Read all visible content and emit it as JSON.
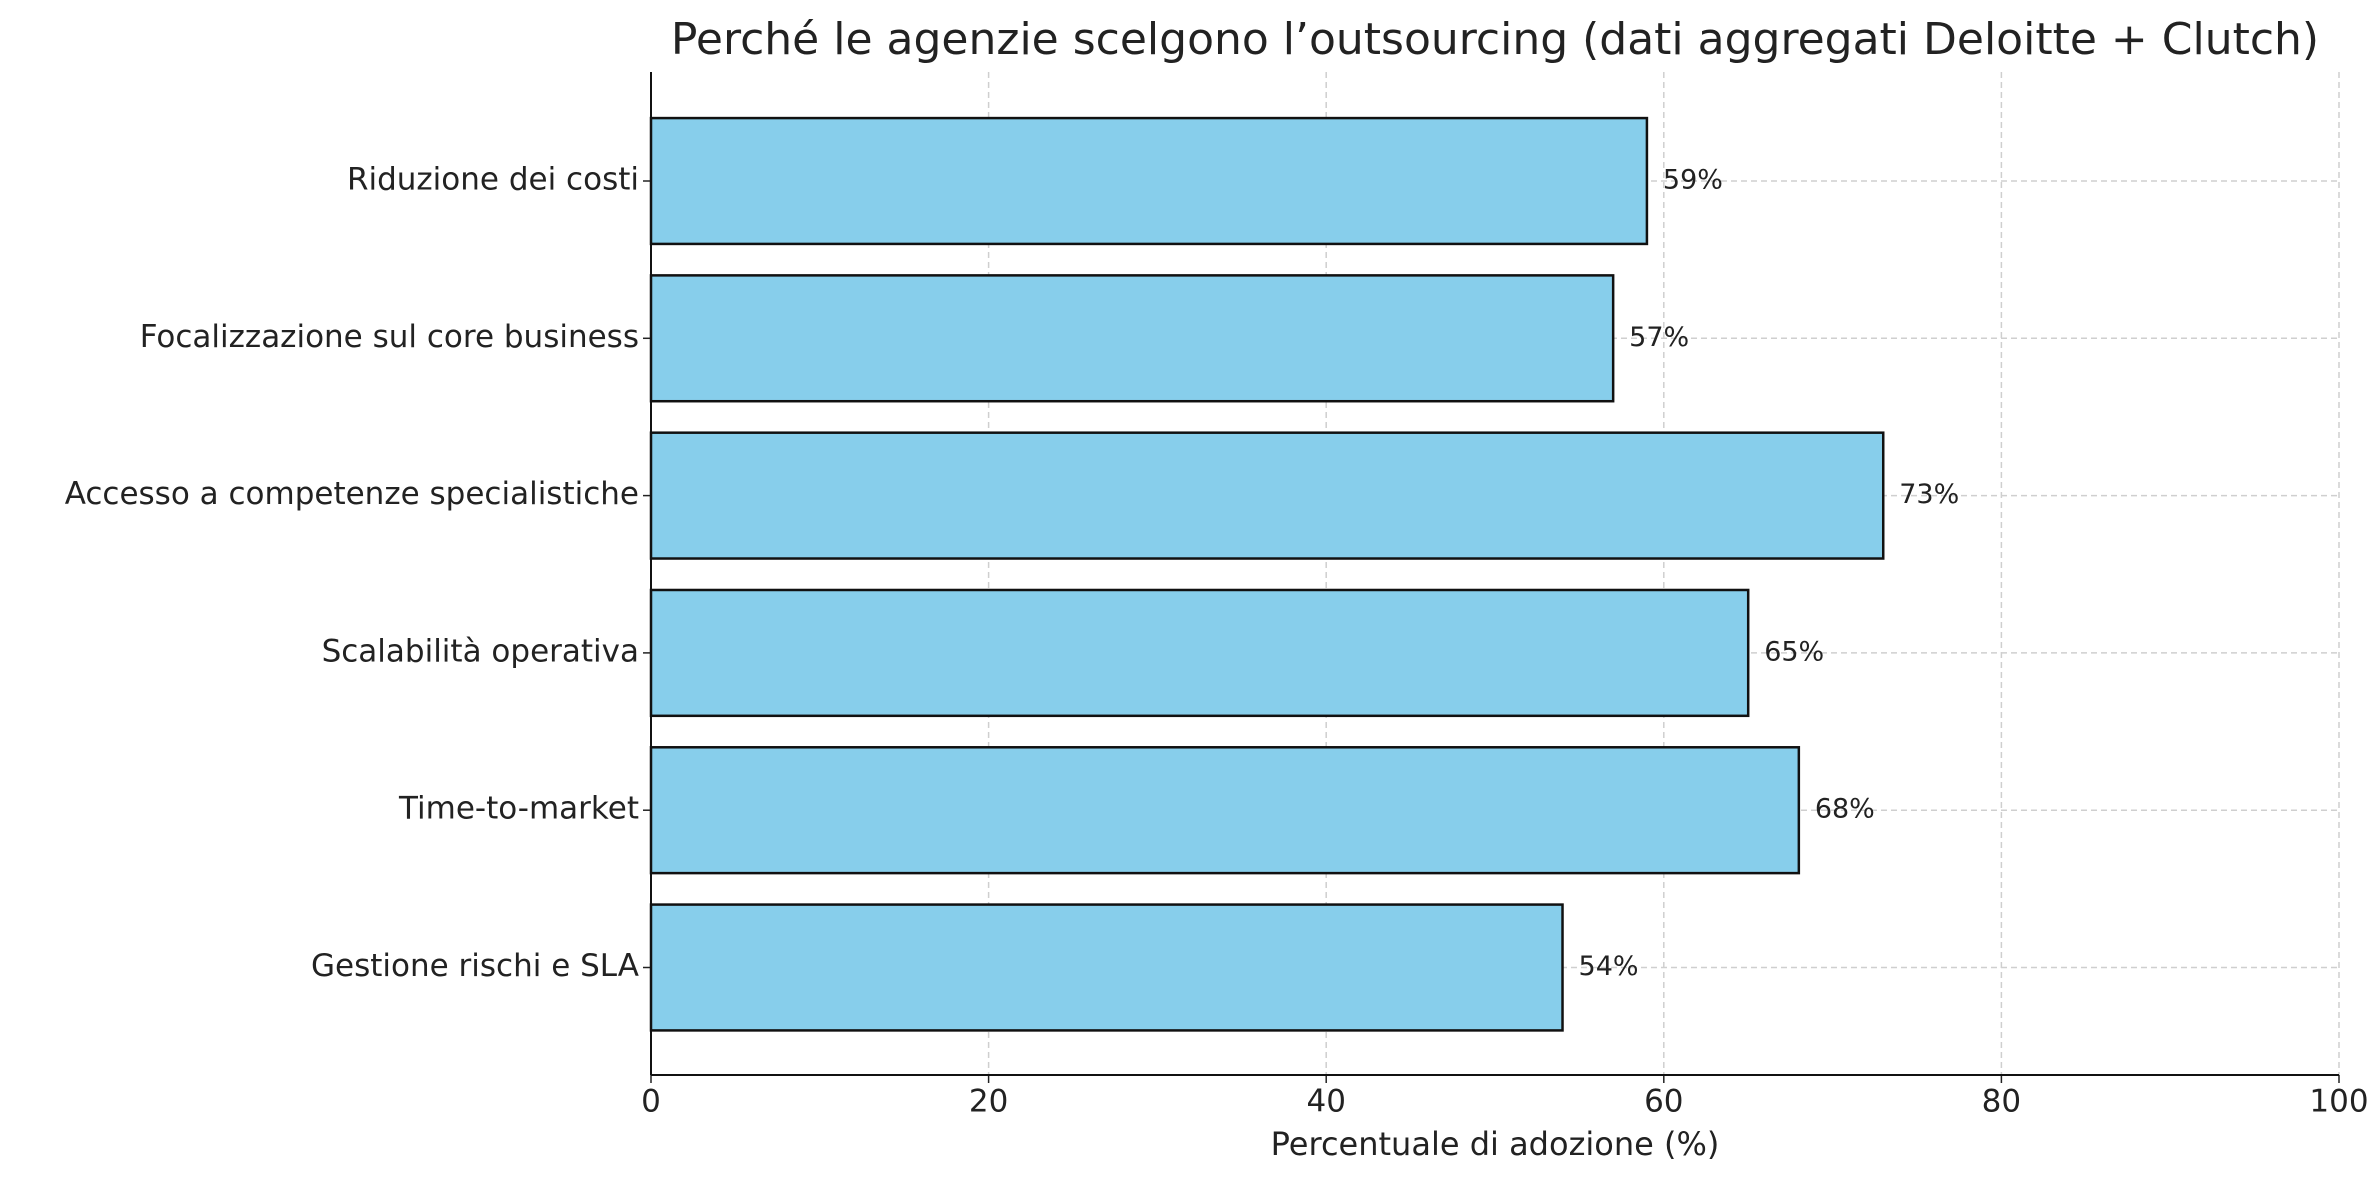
{
  "chart_data": {
    "type": "barh",
    "title": "Perché le agenzie scelgono l’outsourcing (dati aggregati Deloitte + Clutch)",
    "xlabel": "Percentuale di adozione (%)",
    "categories": [
      "Riduzione dei costi",
      "Focalizzazione sul core business",
      "Accesso a competenze specialistiche",
      "Scalabilità operativa",
      "Time-to-market",
      "Gestione rischi e SLA"
    ],
    "values": [
      59,
      57,
      73,
      65,
      68,
      54
    ],
    "value_labels": [
      "59%",
      "57%",
      "73%",
      "65%",
      "68%",
      "54%"
    ],
    "color": "#87ceeb",
    "xlim": [
      0,
      100
    ],
    "xticks": [
      0,
      20,
      40,
      60,
      80,
      100
    ],
    "grid": true
  }
}
